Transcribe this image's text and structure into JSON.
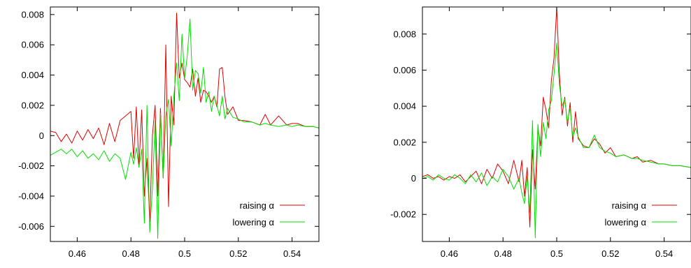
{
  "chart_data": [
    {
      "type": "line",
      "title": "",
      "xlabel": "",
      "ylabel": "",
      "xlim": [
        0.45,
        0.55
      ],
      "ylim": [
        -0.007,
        0.0085
      ],
      "x_ticks": [
        "0.46",
        "0.48",
        "0.5",
        "0.52",
        "0.54"
      ],
      "x_tick_values": [
        0.46,
        0.48,
        0.5,
        0.52,
        0.54
      ],
      "y_ticks": [
        "0.008",
        "0.006",
        "0.004",
        "0.002",
        "0",
        "-0.002",
        "-0.004",
        "-0.006"
      ],
      "y_tick_values": [
        0.008,
        0.006,
        0.004,
        0.002,
        0,
        -0.002,
        -0.004,
        -0.006
      ],
      "grid": false,
      "legend_position": "bottom-right",
      "series": [
        {
          "name": "raising α",
          "color": "#e00000",
          "x": [
            0.45,
            0.452,
            0.454,
            0.456,
            0.458,
            0.46,
            0.462,
            0.464,
            0.466,
            0.468,
            0.47,
            0.472,
            0.474,
            0.476,
            0.478,
            0.48,
            0.481,
            0.482,
            0.483,
            0.484,
            0.485,
            0.486,
            0.487,
            0.488,
            0.489,
            0.49,
            0.491,
            0.492,
            0.493,
            0.494,
            0.495,
            0.496,
            0.497,
            0.498,
            0.499,
            0.5,
            0.501,
            0.502,
            0.503,
            0.504,
            0.505,
            0.506,
            0.507,
            0.508,
            0.509,
            0.51,
            0.511,
            0.512,
            0.513,
            0.514,
            0.515,
            0.516,
            0.518,
            0.52,
            0.522,
            0.525,
            0.528,
            0.53,
            0.532,
            0.535,
            0.538,
            0.54,
            0.542,
            0.545,
            0.548,
            0.55
          ],
          "y": [
            0.0003,
            0.0002,
            -0.0004,
            0.0001,
            -0.0005,
            0.0003,
            -0.0003,
            0.0004,
            -0.0002,
            0.0005,
            -0.0006,
            0.0008,
            -0.0004,
            0.001,
            0.0013,
            0.0016,
            -0.0015,
            0.0019,
            -0.002,
            0.0017,
            -0.004,
            -0.0015,
            -0.0057,
            0.0,
            0.002,
            -0.004,
            0.0018,
            -0.0028,
            0.006,
            -0.0047,
            0.0026,
            0.0007,
            0.0081,
            0.0038,
            0.0048,
            0.0037,
            0.0035,
            0.0032,
            0.0044,
            0.0026,
            0.0038,
            0.0022,
            0.003,
            0.0029,
            0.0026,
            0.0022,
            0.0026,
            0.0019,
            0.0044,
            0.0045,
            0.0026,
            0.0014,
            0.0019,
            0.001,
            0.001,
            0.0009,
            0.0007,
            0.0014,
            0.0007,
            0.0013,
            0.0007,
            0.0008,
            0.0008,
            0.0006,
            0.0006,
            0.0005
          ]
        },
        {
          "name": "lowering α",
          "color": "#00e000",
          "x": [
            0.45,
            0.452,
            0.454,
            0.456,
            0.458,
            0.46,
            0.462,
            0.464,
            0.466,
            0.468,
            0.47,
            0.472,
            0.474,
            0.476,
            0.478,
            0.48,
            0.481,
            0.482,
            0.483,
            0.484,
            0.485,
            0.486,
            0.487,
            0.488,
            0.489,
            0.49,
            0.491,
            0.492,
            0.493,
            0.494,
            0.495,
            0.496,
            0.497,
            0.498,
            0.499,
            0.5,
            0.501,
            0.502,
            0.503,
            0.504,
            0.505,
            0.506,
            0.507,
            0.508,
            0.509,
            0.51,
            0.511,
            0.512,
            0.513,
            0.514,
            0.515,
            0.516,
            0.518,
            0.52,
            0.522,
            0.525,
            0.528,
            0.53,
            0.532,
            0.535,
            0.538,
            0.54,
            0.542,
            0.545,
            0.548,
            0.55
          ],
          "y": [
            -0.0013,
            -0.0011,
            -0.0009,
            -0.0012,
            -0.0009,
            -0.0014,
            -0.001,
            -0.0015,
            -0.0012,
            -0.0016,
            -0.001,
            -0.0017,
            -0.0012,
            -0.0015,
            -0.0029,
            -0.0011,
            -0.0019,
            -0.0008,
            -0.0021,
            -0.0009,
            -0.0058,
            0.002,
            -0.0064,
            -0.0035,
            0.001,
            -0.0068,
            0.0015,
            -0.0028,
            0.0013,
            0.0024,
            -0.0007,
            0.0026,
            0.0048,
            0.0023,
            0.0067,
            0.0038,
            0.0053,
            0.0077,
            0.003,
            0.0043,
            0.0041,
            0.0028,
            0.0045,
            0.0022,
            0.0029,
            0.0016,
            0.0026,
            0.002,
            0.0013,
            0.0026,
            0.0011,
            0.0018,
            0.0012,
            0.0011,
            0.0009,
            0.0009,
            0.0007,
            0.0008,
            0.0007,
            0.0006,
            0.0007,
            0.0006,
            0.0007,
            0.0006,
            0.0006,
            0.0005
          ]
        }
      ]
    },
    {
      "type": "line",
      "title": "",
      "xlabel": "",
      "ylabel": "",
      "xlim": [
        0.45,
        0.55
      ],
      "ylim": [
        -0.0035,
        0.0095
      ],
      "x_ticks": [
        "0.46",
        "0.48",
        "0.5",
        "0.52",
        "0.54"
      ],
      "x_tick_values": [
        0.46,
        0.48,
        0.5,
        0.52,
        0.54
      ],
      "y_ticks": [
        "0.008",
        "0.006",
        "0.004",
        "0.002",
        "0",
        "-0.002"
      ],
      "y_tick_values": [
        0.008,
        0.006,
        0.004,
        0.002,
        0,
        -0.002
      ],
      "grid": false,
      "legend_position": "bottom-right",
      "series": [
        {
          "name": "raising α",
          "color": "#e00000",
          "x": [
            0.45,
            0.452,
            0.454,
            0.456,
            0.458,
            0.46,
            0.462,
            0.464,
            0.466,
            0.468,
            0.47,
            0.472,
            0.474,
            0.476,
            0.478,
            0.48,
            0.482,
            0.484,
            0.486,
            0.487,
            0.488,
            0.489,
            0.49,
            0.491,
            0.492,
            0.493,
            0.494,
            0.495,
            0.496,
            0.497,
            0.498,
            0.499,
            0.5,
            0.501,
            0.502,
            0.503,
            0.504,
            0.505,
            0.506,
            0.507,
            0.508,
            0.51,
            0.512,
            0.514,
            0.516,
            0.518,
            0.52,
            0.522,
            0.525,
            0.528,
            0.53,
            0.532,
            0.535,
            0.538,
            0.54,
            0.543,
            0.546,
            0.55
          ],
          "y": [
            0.0001,
            0.0002,
            0.0,
            0.0001,
            -0.0001,
            0.0001,
            0.0,
            0.0002,
            -0.0002,
            0.0001,
            0.0004,
            -0.0003,
            0.0005,
            0.0,
            0.0008,
            0.0004,
            -0.0003,
            0.001,
            -0.0002,
            0.001,
            -0.001,
            0.0006,
            -0.0027,
            0.0016,
            -0.0006,
            0.0028,
            0.0018,
            0.0045,
            0.0038,
            0.0028,
            0.0054,
            0.0067,
            0.0095,
            0.0058,
            0.0035,
            0.0045,
            0.0029,
            0.0042,
            0.002,
            0.0037,
            0.0022,
            0.0018,
            0.0017,
            0.0022,
            0.0019,
            0.0014,
            0.0017,
            0.0012,
            0.0013,
            0.0011,
            0.0012,
            0.0009,
            0.001,
            0.0008,
            0.0008,
            0.0007,
            0.0007,
            0.0006
          ]
        },
        {
          "name": "lowering α",
          "color": "#00e000",
          "x": [
            0.45,
            0.452,
            0.454,
            0.456,
            0.458,
            0.46,
            0.462,
            0.464,
            0.466,
            0.468,
            0.47,
            0.472,
            0.474,
            0.476,
            0.478,
            0.48,
            0.482,
            0.484,
            0.486,
            0.487,
            0.488,
            0.489,
            0.49,
            0.491,
            0.492,
            0.493,
            0.494,
            0.495,
            0.496,
            0.497,
            0.498,
            0.499,
            0.5,
            0.501,
            0.502,
            0.503,
            0.504,
            0.505,
            0.506,
            0.507,
            0.508,
            0.51,
            0.512,
            0.514,
            0.516,
            0.518,
            0.52,
            0.522,
            0.525,
            0.528,
            0.53,
            0.532,
            0.535,
            0.538,
            0.54,
            0.543,
            0.546,
            0.55
          ],
          "y": [
            0.0,
            0.0001,
            -0.0001,
            0.0002,
            0.0,
            -0.0001,
            0.0002,
            0.0,
            -0.0003,
            0.0002,
            -0.0002,
            0.0003,
            -0.0004,
            0.0001,
            -0.0002,
            0.0005,
            0.0001,
            -0.0006,
            0.0,
            -0.0008,
            -0.0014,
            0.0001,
            -0.0019,
            0.0032,
            -0.0033,
            0.003,
            0.0012,
            0.0031,
            0.0022,
            0.0038,
            0.0043,
            0.0058,
            0.0075,
            0.0052,
            0.004,
            0.0044,
            0.0031,
            0.0039,
            0.0023,
            0.0028,
            0.0023,
            0.0017,
            0.0017,
            0.0024,
            0.0017,
            0.0015,
            0.0014,
            0.0012,
            0.0013,
            0.0011,
            0.0011,
            0.001,
            0.0009,
            0.0008,
            0.0008,
            0.0007,
            0.0007,
            0.0006
          ]
        }
      ]
    }
  ]
}
